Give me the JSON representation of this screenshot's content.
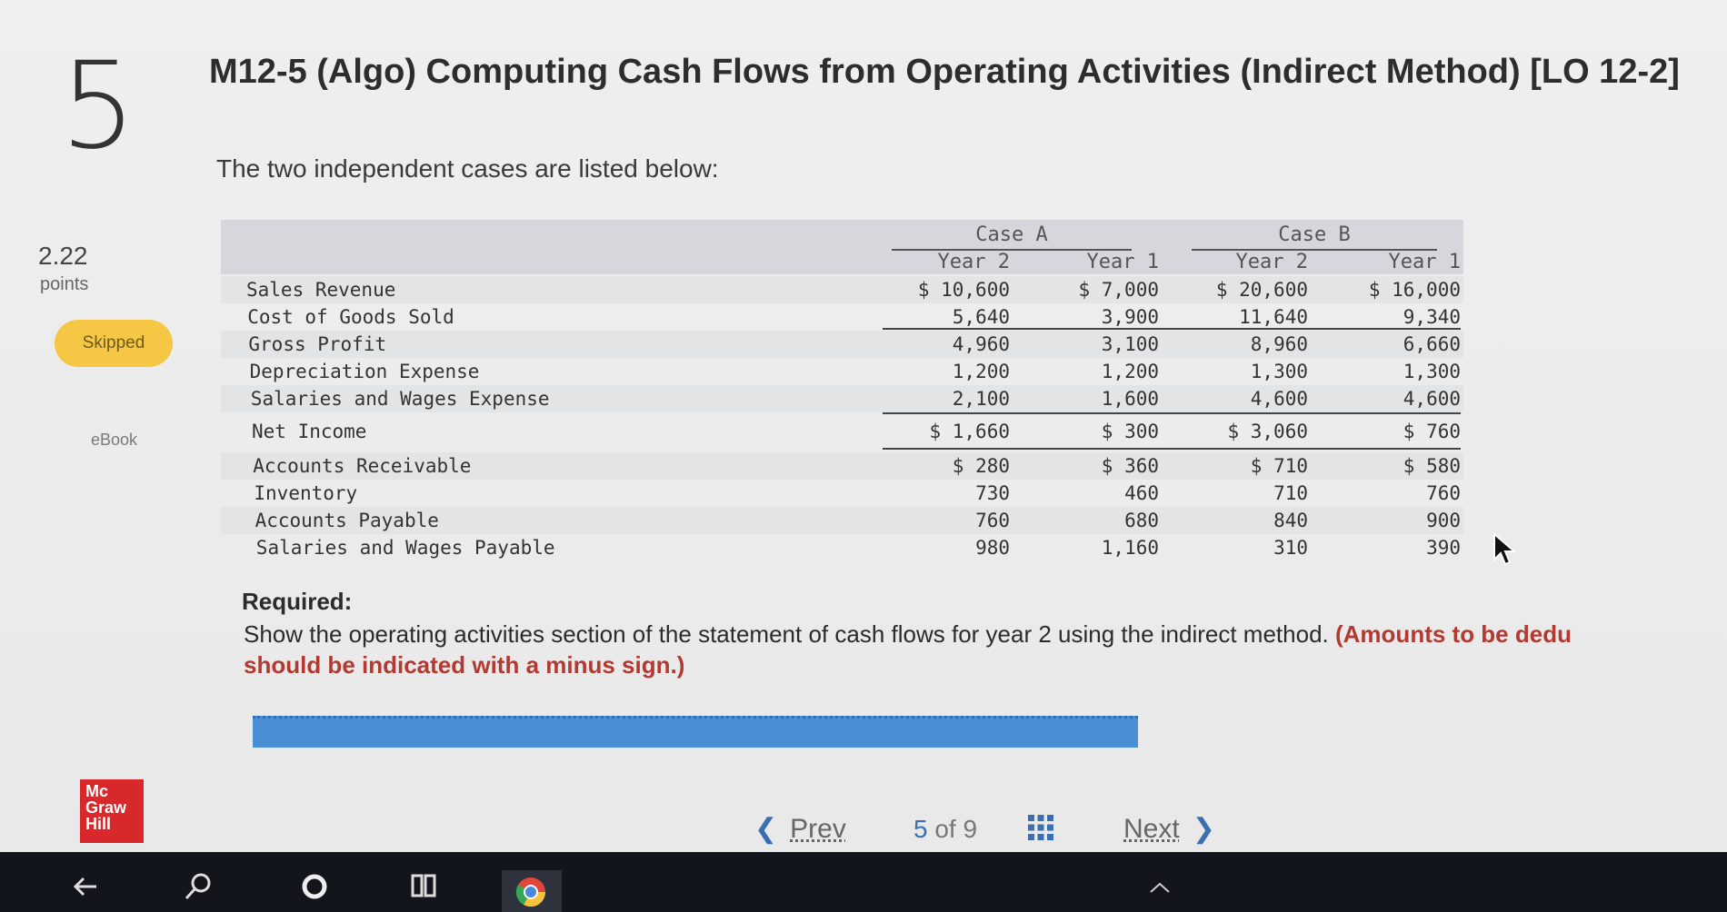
{
  "question": {
    "number": "5",
    "title": "M12-5 (Algo) Computing Cash Flows from Operating Activities (Indirect Method) [LO 12-2]",
    "intro": "The two independent cases are listed below:"
  },
  "sidebar": {
    "points_value": "2.22",
    "points_label": "points",
    "status_badge": "Skipped",
    "ebook_label": "eBook"
  },
  "table": {
    "case_a": "Case A",
    "case_b": "Case B",
    "years": [
      "Year 2",
      "Year 1",
      "Year 2",
      "Year 1"
    ],
    "rows": [
      {
        "label": "Sales Revenue",
        "values": [
          "$ 10,600",
          "$ 7,000",
          "$ 20,600",
          "$ 16,000"
        ]
      },
      {
        "label": "Cost of Goods Sold",
        "values": [
          "5,640",
          "3,900",
          "11,640",
          "9,340"
        ]
      },
      {
        "label": "Gross Profit",
        "values": [
          "4,960",
          "3,100",
          "8,960",
          "6,660"
        ]
      },
      {
        "label": "Depreciation Expense",
        "values": [
          "1,200",
          "1,200",
          "1,300",
          "1,300"
        ]
      },
      {
        "label": "Salaries and Wages Expense",
        "values": [
          "2,100",
          "1,600",
          "4,600",
          "4,600"
        ]
      },
      {
        "label": "Net Income",
        "values": [
          "$ 1,660",
          "$ 300",
          "$ 3,060",
          "$ 760"
        ]
      },
      {
        "label": "Accounts Receivable",
        "values": [
          "$ 280",
          "$ 360",
          "$ 710",
          "$ 580"
        ]
      },
      {
        "label": "Inventory",
        "values": [
          "730",
          "460",
          "710",
          "760"
        ]
      },
      {
        "label": "Accounts Payable",
        "values": [
          "760",
          "680",
          "840",
          "900"
        ]
      },
      {
        "label": "Salaries and Wages Payable",
        "values": [
          "980",
          "1,160",
          "310",
          "390"
        ]
      }
    ]
  },
  "required": {
    "heading": "Required:",
    "text": "Show the operating activities section of the statement of cash flows for year 2 using the indirect method.",
    "note_line1": "(Amounts to be dedu",
    "note_line2": "should be indicated with a minus sign.)"
  },
  "footer": {
    "logo_text": [
      "Mc",
      "Graw",
      "Hill"
    ],
    "prev_label": "Prev",
    "page_current": "5",
    "page_of": "of 9",
    "next_label": "Next"
  },
  "colors": {
    "accent_blue": "#3b6fb0",
    "skipped_badge": "#f6c744",
    "warning_red": "#b23a32",
    "brand_red": "#d8282c"
  }
}
